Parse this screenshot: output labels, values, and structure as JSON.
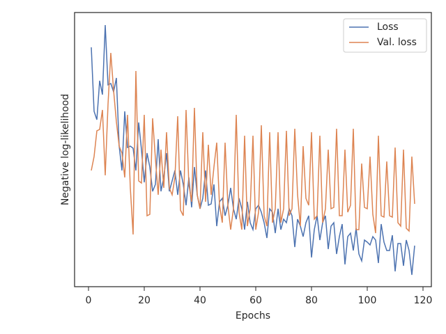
{
  "chart_data": {
    "type": "line",
    "xlabel": "Epochs",
    "ylabel": "Negative log-likelihood",
    "xlim": [
      -5,
      123
    ],
    "xticks": [
      0,
      20,
      40,
      60,
      80,
      100,
      120
    ],
    "ylim": [
      0,
      394
    ],
    "legend": "upper right",
    "x": [
      1,
      2,
      3,
      4,
      5,
      6,
      7,
      8,
      9,
      10,
      11,
      12,
      13,
      14,
      15,
      16,
      17,
      18,
      19,
      20,
      21,
      22,
      23,
      24,
      25,
      26,
      27,
      28,
      29,
      30,
      31,
      32,
      33,
      34,
      35,
      36,
      37,
      38,
      39,
      40,
      41,
      42,
      43,
      44,
      45,
      46,
      47,
      48,
      49,
      50,
      51,
      52,
      53,
      54,
      55,
      56,
      57,
      58,
      59,
      60,
      61,
      62,
      63,
      64,
      65,
      66,
      67,
      68,
      69,
      70,
      71,
      72,
      73,
      74,
      75,
      76,
      77,
      78,
      79,
      80,
      81,
      82,
      83,
      84,
      85,
      86,
      87,
      88,
      89,
      90,
      91,
      92,
      93,
      94,
      95,
      96,
      97,
      98,
      99,
      100,
      101,
      102,
      103,
      104,
      105,
      106,
      107,
      108,
      109,
      110,
      111,
      112,
      113,
      114,
      115,
      116,
      117
    ],
    "series": [
      {
        "name": "Loss",
        "color": "#4c72b0",
        "values": [
          344,
          252,
          240,
          296,
          276,
          376,
          290,
          292,
          280,
          300,
          202,
          167,
          252,
          200,
          202,
          199,
          167,
          236,
          197,
          150,
          192,
          172,
          137,
          147,
          212,
          137,
          157,
          192,
          137,
          152,
          167,
          132,
          167,
          147,
          117,
          157,
          114,
          172,
          132,
          112,
          127,
          167,
          117,
          119,
          147,
          87,
          122,
          127,
          102,
          117,
          142,
          112,
          97,
          127,
          112,
          82,
          122,
          92,
          82,
          112,
          117,
          107,
          92,
          70,
          112,
          107,
          77,
          112,
          82,
          97,
          92,
          112,
          102,
          57,
          97,
          87,
          72,
          92,
          102,
          42,
          82,
          102,
          67,
          92,
          102,
          54,
          87,
          92,
          47,
          72,
          90,
          32,
          72,
          77,
          52,
          84,
          47,
          37,
          67,
          64,
          60,
          72,
          67,
          34,
          90,
          64,
          52,
          52,
          74,
          22,
          62,
          62,
          30,
          67,
          52,
          17,
          59
        ]
      },
      {
        "name": "Val. loss",
        "color": "#dd8452",
        "values": [
          167,
          187,
          224,
          226,
          254,
          160,
          262,
          336,
          282,
          237,
          202,
          192,
          157,
          247,
          142,
          75,
          310,
          152,
          149,
          247,
          102,
          104,
          242,
          184,
          132,
          197,
          142,
          222,
          142,
          132,
          157,
          245,
          110,
          102,
          254,
          147,
          122,
          257,
          132,
          112,
          222,
          122,
          204,
          132,
          172,
          207,
          117,
          92,
          207,
          117,
          82,
          112,
          247,
          107,
          82,
          217,
          87,
          112,
          217,
          82,
          107,
          232,
          102,
          87,
          222,
          92,
          112,
          222,
          92,
          112,
          224,
          102,
          112,
          227,
          132,
          87,
          202,
          127,
          117,
          222,
          97,
          102,
          217,
          92,
          112,
          197,
          112,
          114,
          227,
          102,
          102,
          197,
          107,
          117,
          227,
          82,
          82,
          177,
          114,
          112,
          187,
          104,
          77,
          217,
          102,
          100,
          180,
          102,
          100,
          200,
          92,
          87,
          197,
          84,
          80,
          187,
          119
        ]
      }
    ]
  }
}
